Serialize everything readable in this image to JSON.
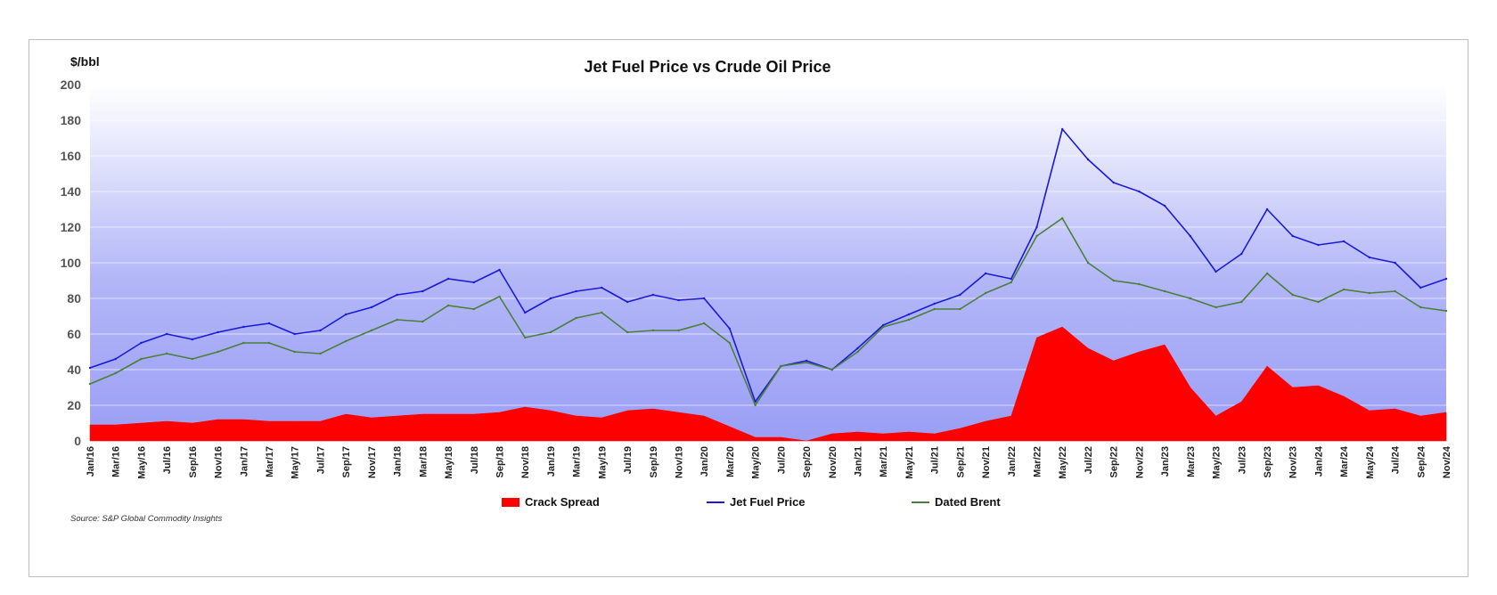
{
  "chart_data": {
    "type": "line",
    "title": "Jet Fuel Price vs Crude Oil Price",
    "ylabel": "$/bbl",
    "ylim": [
      0,
      200
    ],
    "yticks": [
      0,
      20,
      40,
      60,
      80,
      100,
      120,
      140,
      160,
      180,
      200
    ],
    "grid": true,
    "legend_position": "bottom",
    "source": "Source:  S&P Global Commodity Insights",
    "x": [
      "Jan/16",
      "Mar/16",
      "May/16",
      "Jul/16",
      "Sep/16",
      "Nov/16",
      "Jan/17",
      "Mar/17",
      "May/17",
      "Jul/17",
      "Sep/17",
      "Nov/17",
      "Jan/18",
      "Mar/18",
      "May/18",
      "Jul/18",
      "Sep/18",
      "Nov/18",
      "Jan/19",
      "Mar/19",
      "May/19",
      "Jul/19",
      "Sep/19",
      "Nov/19",
      "Jan/20",
      "Mar/20",
      "May/20",
      "Jul/20",
      "Sep/20",
      "Nov/20",
      "Jan/21",
      "Mar/21",
      "May/21",
      "Jul/21",
      "Sep/21",
      "Nov/21",
      "Jan/22",
      "Mar/22",
      "May/22",
      "Jul/22",
      "Sep/22",
      "Nov/22",
      "Jan/23",
      "Mar/23",
      "May/23",
      "Jul/23",
      "Sep/23",
      "Nov/23",
      "Jan/24",
      "Mar/24",
      "May/24",
      "Jul/24",
      "Sep/24",
      "Nov/24"
    ],
    "series": [
      {
        "name": "Crack Spread",
        "kind": "area",
        "color": "#ff0000",
        "values": [
          9,
          9,
          10,
          11,
          10,
          12,
          12,
          11,
          11,
          11,
          15,
          13,
          14,
          15,
          15,
          15,
          16,
          19,
          17,
          14,
          13,
          17,
          18,
          16,
          14,
          8,
          2,
          2,
          0,
          4,
          5,
          4,
          5,
          4,
          7,
          11,
          14,
          58,
          64,
          52,
          45,
          50,
          54,
          30,
          14,
          22,
          42,
          30,
          31,
          25,
          17,
          18,
          14,
          16
        ]
      },
      {
        "name": "Jet Fuel Price",
        "kind": "line",
        "color": "#1a1ad6",
        "values": [
          41,
          46,
          55,
          60,
          57,
          61,
          64,
          66,
          60,
          62,
          71,
          75,
          82,
          84,
          91,
          89,
          96,
          72,
          80,
          84,
          86,
          78,
          82,
          79,
          80,
          63,
          22,
          42,
          45,
          40,
          52,
          65,
          71,
          77,
          82,
          94,
          91,
          120,
          175,
          158,
          145,
          140,
          132,
          115,
          95,
          105,
          130,
          115,
          110,
          112,
          103,
          100,
          86,
          91
        ]
      },
      {
        "name": "Dated Brent",
        "kind": "line",
        "color": "#4a7f3a",
        "values": [
          32,
          38,
          46,
          49,
          46,
          50,
          55,
          55,
          50,
          49,
          56,
          62,
          68,
          67,
          76,
          74,
          81,
          58,
          61,
          69,
          72,
          61,
          62,
          62,
          66,
          55,
          20,
          42,
          44,
          40,
          50,
          64,
          68,
          74,
          74,
          83,
          89,
          115,
          125,
          100,
          90,
          88,
          84,
          80,
          75,
          78,
          94,
          82,
          78,
          85,
          83,
          84,
          75,
          73
        ]
      }
    ]
  }
}
